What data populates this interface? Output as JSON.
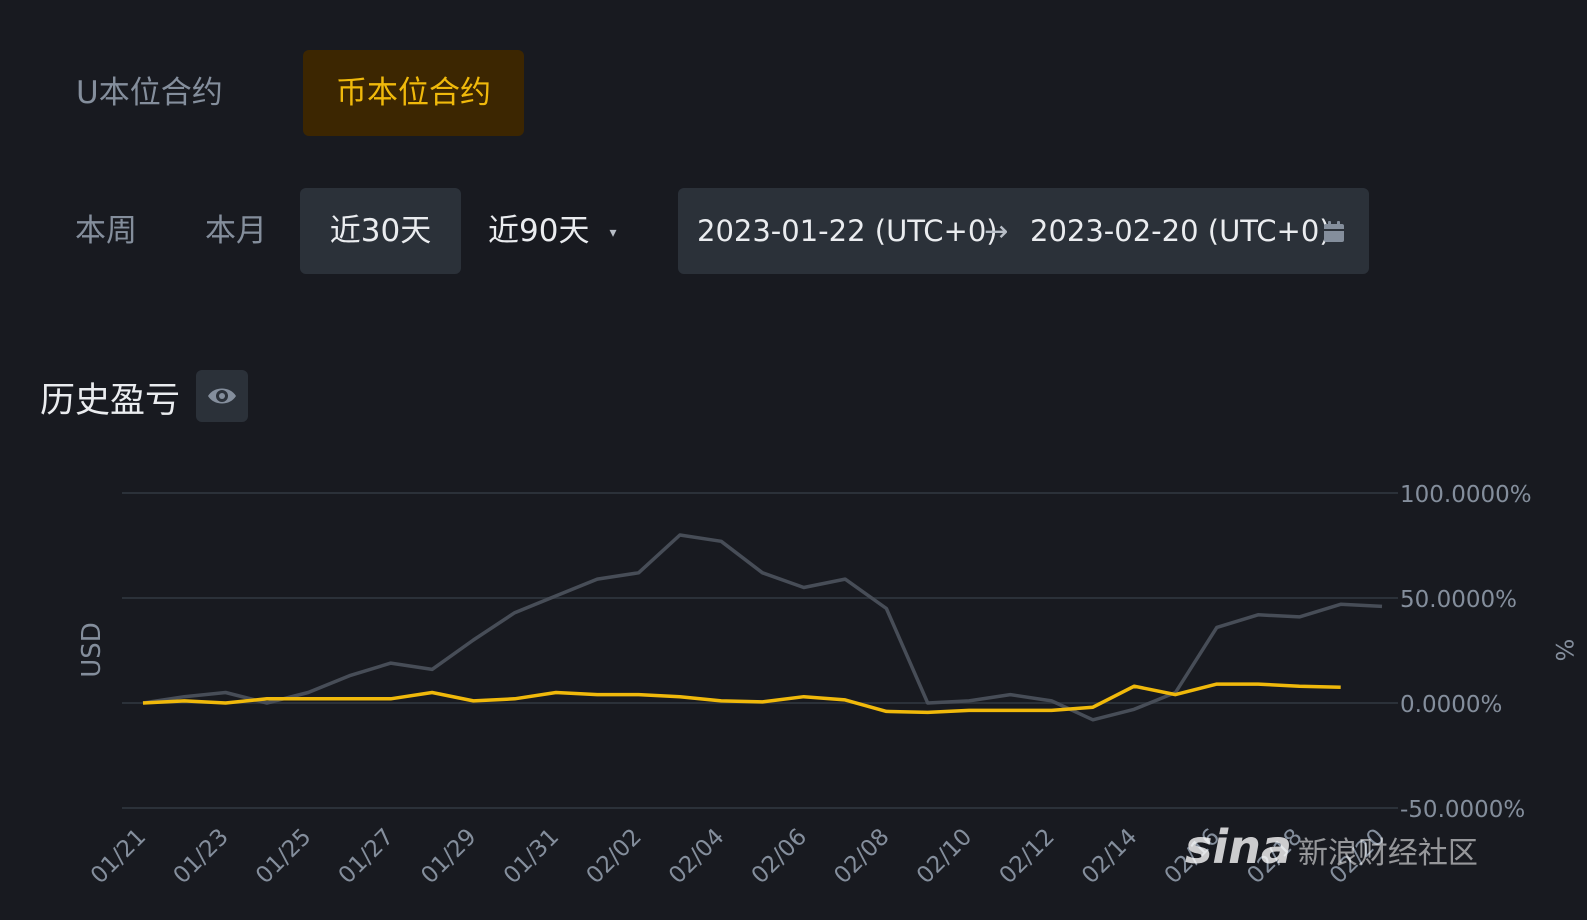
{
  "contract_tabs": [
    "U本位合约",
    "币本位合约"
  ],
  "range_buttons": {
    "week": "本周",
    "month": "本月",
    "last30": "近30天",
    "last90": "近90天",
    "caret": "▾"
  },
  "date_range": {
    "start": "2023-01-22 (UTC+0)",
    "arrow": "→",
    "end": "2023-02-20 (UTC+0)"
  },
  "section_title": "历史盈亏",
  "watermark": {
    "logo": "sina",
    "text": "新浪财经社区"
  },
  "colors": {
    "accent": "#f0b90b",
    "gray_line": "#474d57",
    "grid": "#2b3139",
    "axis_text": "#848e9c"
  },
  "icons": {
    "calendar": "calendar-icon",
    "eye": "eye-icon"
  },
  "chart_data": {
    "type": "line",
    "xlabel": "",
    "ylabel_left": "USD",
    "ylabel_right": "%",
    "x_ticks": [
      "01/21",
      "01/23",
      "01/25",
      "01/27",
      "01/29",
      "01/31",
      "02/02",
      "02/04",
      "02/06",
      "02/08",
      "02/10",
      "02/12",
      "02/14",
      "02/16",
      "02/18",
      "02/20"
    ],
    "x": [
      "01/21",
      "01/22",
      "01/23",
      "01/24",
      "01/25",
      "01/26",
      "01/27",
      "01/28",
      "01/29",
      "01/30",
      "01/31",
      "02/01",
      "02/02",
      "02/03",
      "02/04",
      "02/05",
      "02/06",
      "02/07",
      "02/08",
      "02/09",
      "02/10",
      "02/11",
      "02/12",
      "02/13",
      "02/14",
      "02/15",
      "02/16",
      "02/17",
      "02/18",
      "02/19",
      "02/20"
    ],
    "right_axis": {
      "ticks": [
        "100.0000%",
        "50.0000%",
        "0.0000%",
        "-50.0000%"
      ],
      "values": [
        100,
        50,
        0,
        -50
      ]
    },
    "grid": true,
    "series": [
      {
        "color": "#474d57",
        "axis": "right",
        "values": [
          0,
          3,
          5,
          0,
          5,
          13,
          19,
          16,
          30,
          43,
          51,
          59,
          62,
          80,
          77,
          62,
          55,
          59,
          45,
          0,
          1,
          4,
          1,
          -8,
          -3,
          5,
          36,
          42,
          41,
          47,
          46
        ]
      },
      {
        "color": "#f0b90b",
        "axis": "right",
        "values": [
          0,
          1,
          0,
          2,
          2,
          2,
          2,
          5,
          1,
          2,
          5,
          4,
          4,
          3,
          1,
          0.5,
          3,
          1.5,
          -4,
          -4.5,
          -3.5,
          -3.5,
          -3.5,
          -2,
          8,
          4,
          9,
          9,
          8,
          7.5,
          null
        ]
      }
    ]
  }
}
